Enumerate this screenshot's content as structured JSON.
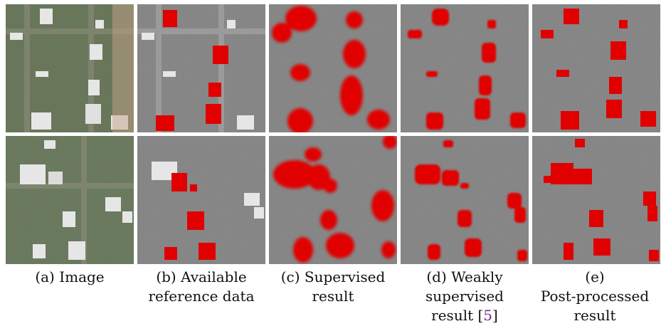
{
  "figure": {
    "panels": [
      {
        "id": "a",
        "caption_lines": [
          "(a) Image"
        ]
      },
      {
        "id": "b",
        "caption_lines": [
          "(b) Available",
          "reference data"
        ]
      },
      {
        "id": "c",
        "caption_lines": [
          "(c) Supervised",
          "result"
        ]
      },
      {
        "id": "d",
        "caption_lines": [
          "(d) Weakly",
          "supervised"
        ],
        "caption_tail": "result [",
        "citation": "5",
        "caption_tail_end": "]"
      },
      {
        "id": "e",
        "caption_lines": [
          "(e)",
          "Post-processed",
          "result"
        ]
      }
    ],
    "colors": {
      "building_mask": "#e00000",
      "background_gray": "#8c8c8c",
      "aerial_green": "#6f7f60",
      "roof_white": "#e6e6e6",
      "citation": "#7a2a8a"
    },
    "rows": [
      "top",
      "bottom"
    ]
  }
}
